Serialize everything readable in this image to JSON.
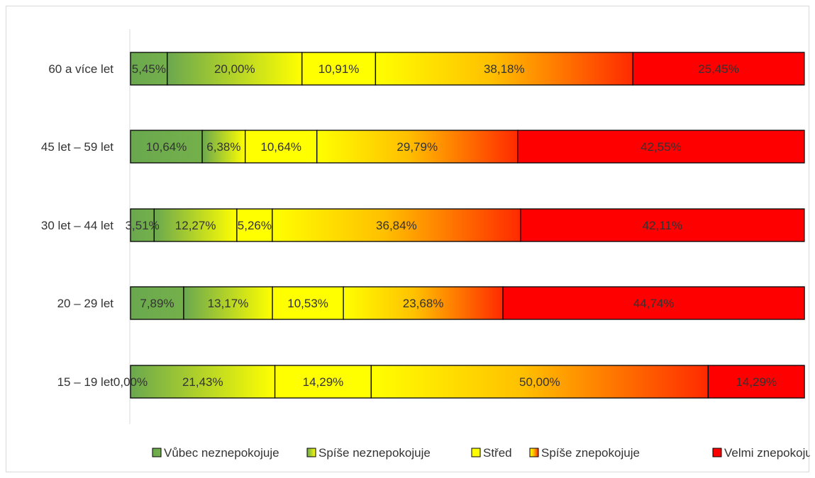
{
  "chart_data": {
    "type": "bar",
    "orientation": "horizontal",
    "stacked": "percent",
    "categories": [
      "60 a více let",
      "45 let – 59 let",
      "30 let – 44 let",
      "20 – 29 let",
      "15 – 19 let"
    ],
    "series": [
      {
        "name": "Vůbec neznepokojuje",
        "values": [
          5.45,
          10.64,
          3.51,
          7.89,
          0.0
        ],
        "labels": [
          "5,45%",
          "10,64%",
          "3,51%",
          "7,89%",
          "0,00%"
        ],
        "color": "#70ad47"
      },
      {
        "name": "Spíše neznepokojuje",
        "values": [
          20.0,
          6.38,
          12.27,
          13.17,
          21.43
        ],
        "labels": [
          "20,00%",
          "6,38%",
          "12,27%",
          "13,17%",
          "21,43%"
        ],
        "color": "#a9d04a"
      },
      {
        "name": "Střed",
        "values": [
          10.91,
          10.64,
          5.26,
          10.53,
          14.29
        ],
        "labels": [
          "10,91%",
          "10,64%",
          "5,26%",
          "10,53%",
          "14,29%"
        ],
        "color": "#ffff00"
      },
      {
        "name": "Spíše znepokojuje",
        "values": [
          38.18,
          29.79,
          36.84,
          23.68,
          50.0
        ],
        "labels": [
          "38,18%",
          "29,79%",
          "36,84%",
          "23,68%",
          "50,00%"
        ],
        "color": "#ff9900"
      },
      {
        "name": "Velmi znepokojuje",
        "values": [
          25.45,
          42.55,
          42.11,
          44.74,
          14.29
        ],
        "labels": [
          "25,45%",
          "42,55%",
          "42,11%",
          "44,74%",
          "14,29%"
        ],
        "color": "#ff0000"
      }
    ],
    "xlim": [
      0,
      100
    ],
    "grid": false,
    "legend_position": "bottom"
  }
}
